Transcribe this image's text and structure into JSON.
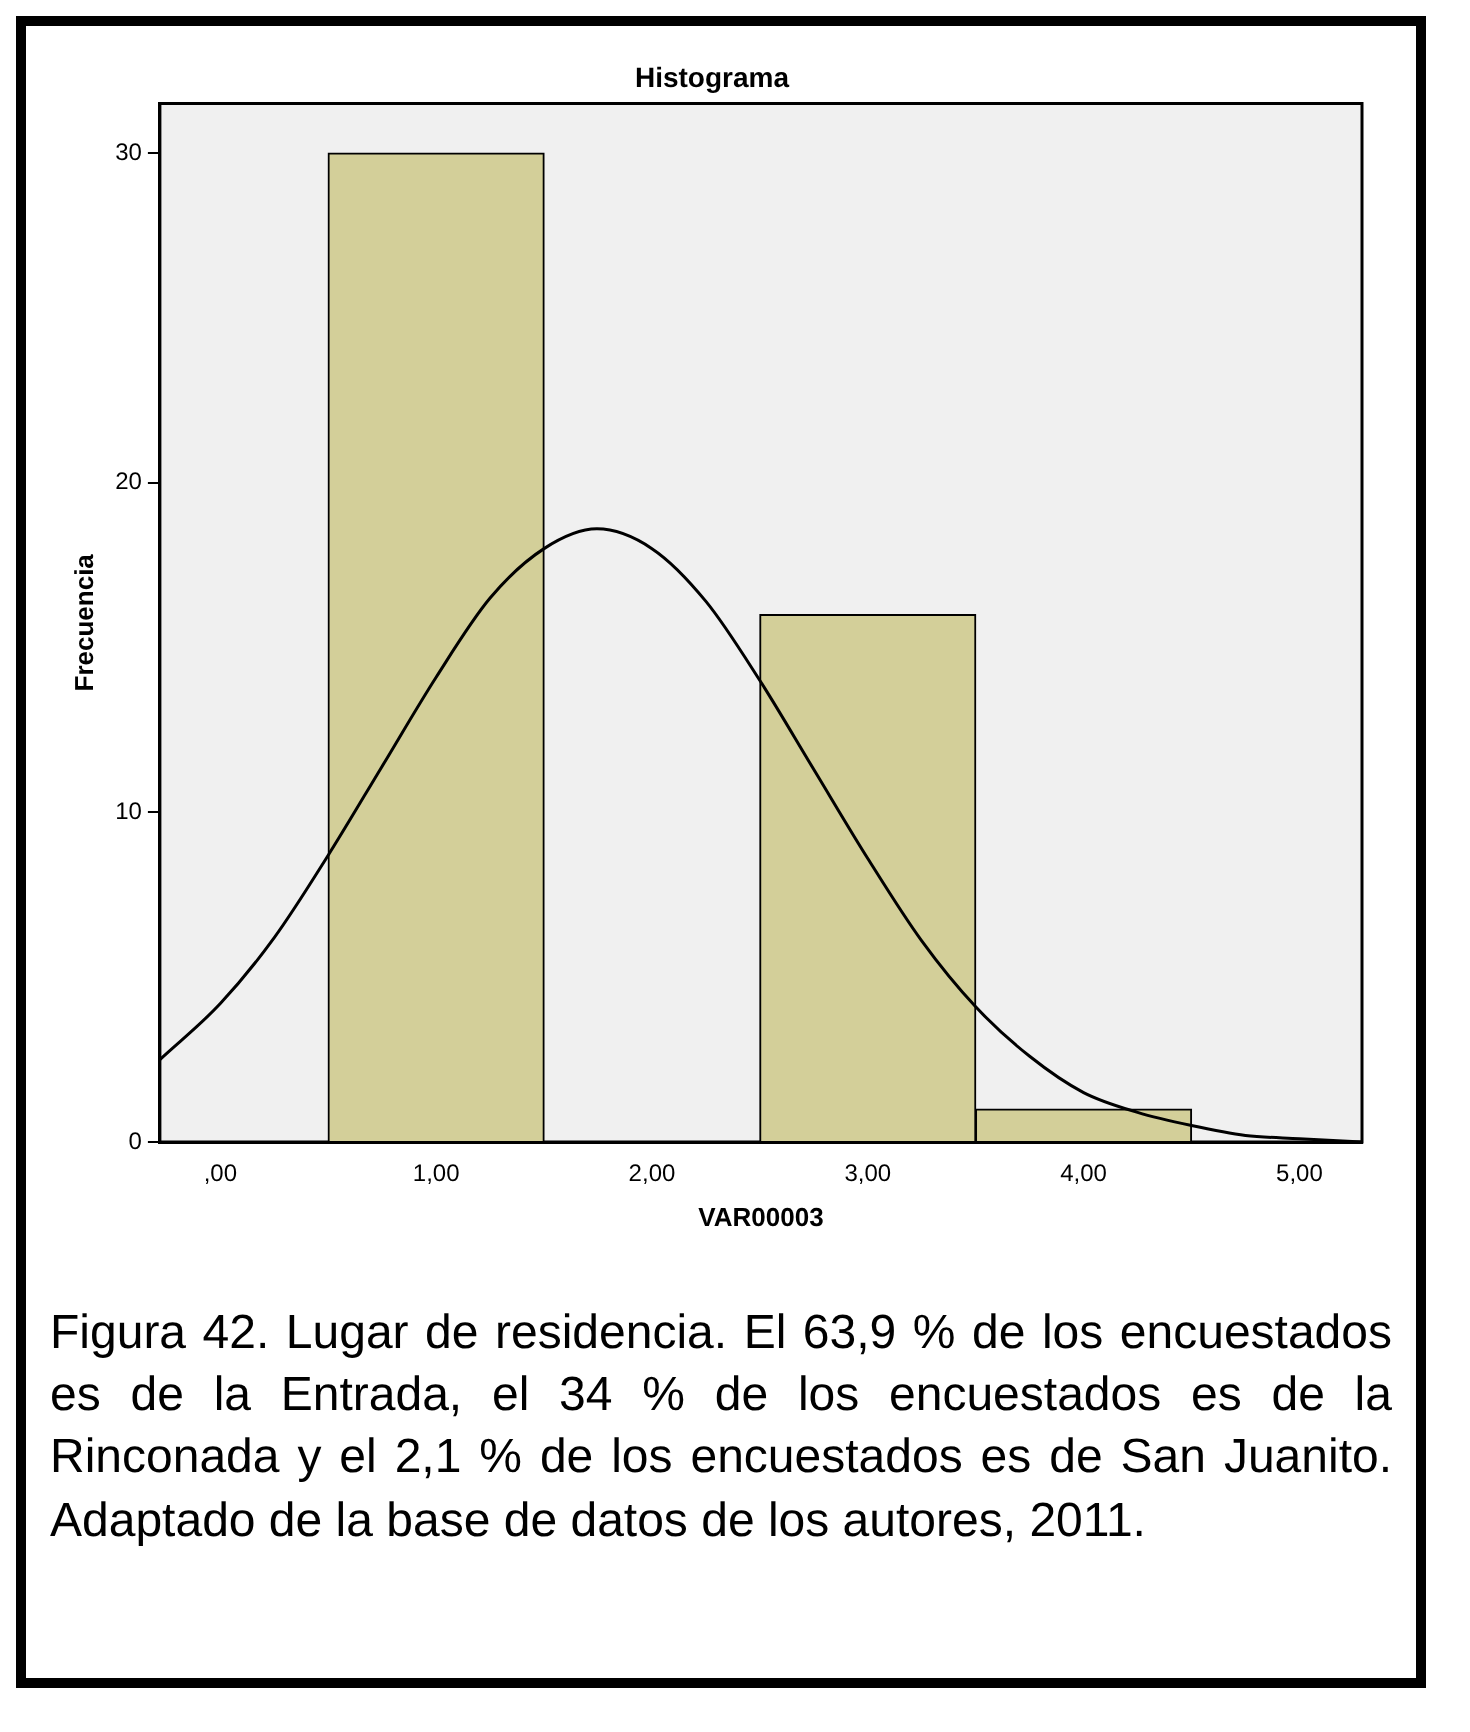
{
  "chart_data": {
    "type": "histogram",
    "title": "Histograma",
    "xlabel": "VAR00003",
    "ylabel": "Frecuencia",
    "bins": [
      0.5,
      1.5,
      2.5,
      3.5,
      4.5
    ],
    "values": [
      30,
      0,
      16,
      1
    ],
    "color": "#d3cf99",
    "series": [
      {
        "type": "line",
        "color": "#000000",
        "x": [
          -0.28,
          0,
          0.25,
          0.5,
          0.75,
          1,
          1.25,
          1.5,
          1.745,
          2,
          2.25,
          2.5,
          2.75,
          3,
          3.25,
          3.5,
          3.75,
          4,
          4.25,
          4.5,
          4.75,
          5,
          5.29
        ],
        "values": [
          2.5,
          4.2,
          6.2,
          8.7,
          11.4,
          14.1,
          16.5,
          18,
          18.6,
          18,
          16.4,
          14,
          11.3,
          8.6,
          6.1,
          4.1,
          2.6,
          1.5,
          0.9,
          0.5,
          0.2,
          0.1,
          0
        ]
      }
    ],
    "xlim": [
      -0.28,
      5.29
    ],
    "xticks": [
      {
        "value": 0,
        "label": ",00"
      },
      {
        "value": 1,
        "label": "1,00"
      },
      {
        "value": 2,
        "label": "2,00"
      },
      {
        "value": 3,
        "label": "3,00"
      },
      {
        "value": 4,
        "label": "4,00"
      },
      {
        "value": 5,
        "label": "5,00"
      }
    ],
    "ylim": [
      0,
      31.5
    ],
    "yticks": [
      0,
      10,
      20,
      30
    ],
    "grid": false,
    "legend": false,
    "marker": "none",
    "line_style": "solid",
    "annotations": [
      "Figura 42. Lugar de residencia. El 63,9 % de los encuestados es de la Entrada, el 34 % de los encuestados es de la Rinconada y el 2,1 % de los encuestados es de San Juanito. Adaptado de la base de datos de los autores, 2011."
    ]
  }
}
